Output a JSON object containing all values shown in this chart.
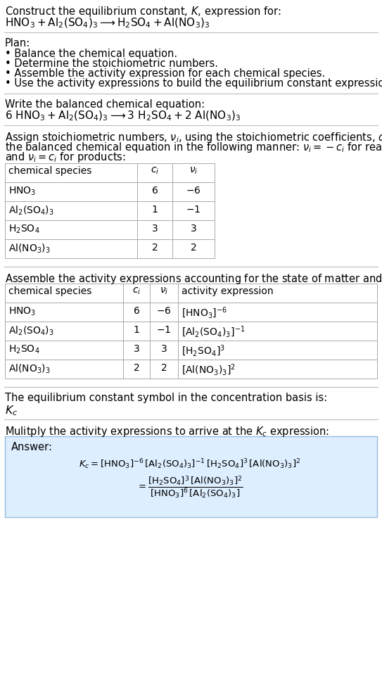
{
  "bg_color": "#ffffff",
  "answer_bg_color": "#ddeeff",
  "title_line1": "Construct the equilibrium constant, $K$, expression for:",
  "title_line2": "$\\mathrm{HNO_3 + Al_2(SO_4)_3 \\longrightarrow H_2SO_4 + Al(NO_3)_3}$",
  "plan_header": "Plan:",
  "plan_items": [
    "• Balance the chemical equation.",
    "• Determine the stoichiometric numbers.",
    "• Assemble the activity expression for each chemical species.",
    "• Use the activity expressions to build the equilibrium constant expression."
  ],
  "balanced_header": "Write the balanced chemical equation:",
  "balanced_eq": "$\\mathrm{6\\ HNO_3 + Al_2(SO_4)_3 \\longrightarrow 3\\ H_2SO_4 + 2\\ Al(NO_3)_3}$",
  "stoich_header_parts": [
    "Assign stoichiometric numbers, $\\nu_i$, using the stoichiometric coefficients, $c_i$, from",
    "the balanced chemical equation in the following manner: $\\nu_i = -c_i$ for reactants",
    "and $\\nu_i = c_i$ for products:"
  ],
  "table1_headers": [
    "chemical species",
    "$c_i$",
    "$\\nu_i$"
  ],
  "table1_rows": [
    [
      "$\\mathrm{HNO_3}$",
      "6",
      "$-6$"
    ],
    [
      "$\\mathrm{Al_2(SO_4)_3}$",
      "1",
      "$-1$"
    ],
    [
      "$\\mathrm{H_2SO_4}$",
      "3",
      "3"
    ],
    [
      "$\\mathrm{Al(NO_3)_3}$",
      "2",
      "2"
    ]
  ],
  "activity_header": "Assemble the activity expressions accounting for the state of matter and $\\nu_i$:",
  "table2_headers": [
    "chemical species",
    "$c_i$",
    "$\\nu_i$",
    "activity expression"
  ],
  "table2_rows": [
    [
      "$\\mathrm{HNO_3}$",
      "6",
      "$-6$",
      "$[\\mathrm{HNO_3}]^{-6}$"
    ],
    [
      "$\\mathrm{Al_2(SO_4)_3}$",
      "1",
      "$-1$",
      "$[\\mathrm{Al_2(SO_4)_3}]^{-1}$"
    ],
    [
      "$\\mathrm{H_2SO_4}$",
      "3",
      "3",
      "$[\\mathrm{H_2SO_4}]^3$"
    ],
    [
      "$\\mathrm{Al(NO_3)_3}$",
      "2",
      "2",
      "$[\\mathrm{Al(NO_3)_3}]^2$"
    ]
  ],
  "Kc_text": "The equilibrium constant symbol in the concentration basis is:",
  "Kc_symbol": "$K_c$",
  "multiply_header": "Mulitply the activity expressions to arrive at the $K_c$ expression:",
  "answer_label": "Answer:",
  "font_size": 10.5
}
